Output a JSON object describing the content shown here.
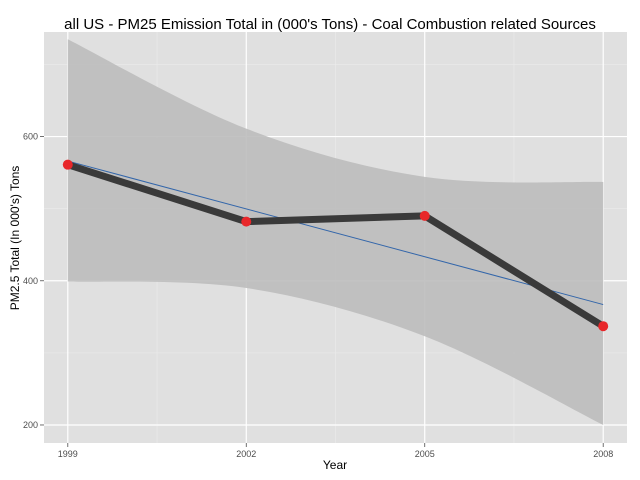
{
  "chart_data": {
    "type": "line",
    "title": "all US - PM25 Emission Total in (000's Tons) - Coal Combustion related Sources",
    "xlabel": "Year",
    "ylabel": "PM2.5 Total (In 000's) Tons",
    "x": [
      1999,
      2002,
      2005,
      2008
    ],
    "x_ticks": [
      "1999",
      "2002",
      "2005",
      "2008"
    ],
    "y_ticks": [
      "200",
      "400",
      "600"
    ],
    "xlim": [
      1998.6,
      2008.4
    ],
    "ylim": [
      175,
      745
    ],
    "series": [
      {
        "values": [
          561,
          482,
          490,
          337
        ],
        "line_color": "#3a3a3a",
        "point_color": "#e8272a"
      }
    ],
    "trend": {
      "method": "linear fit",
      "start": [
        1999,
        566
      ],
      "end": [
        2008,
        367
      ],
      "color": "#3366aa",
      "band_upper": [
        [
          1999,
          735
        ],
        [
          2002,
          611
        ],
        [
          2005,
          544
        ],
        [
          2008,
          537
        ]
      ],
      "band_lower": [
        [
          1999,
          399
        ],
        [
          2002,
          390
        ],
        [
          2005,
          323
        ],
        [
          2008,
          200
        ]
      ],
      "band_color": "#bdbdbd"
    },
    "grid": true,
    "panel_color": "#e0e0e0",
    "legend": "none"
  }
}
